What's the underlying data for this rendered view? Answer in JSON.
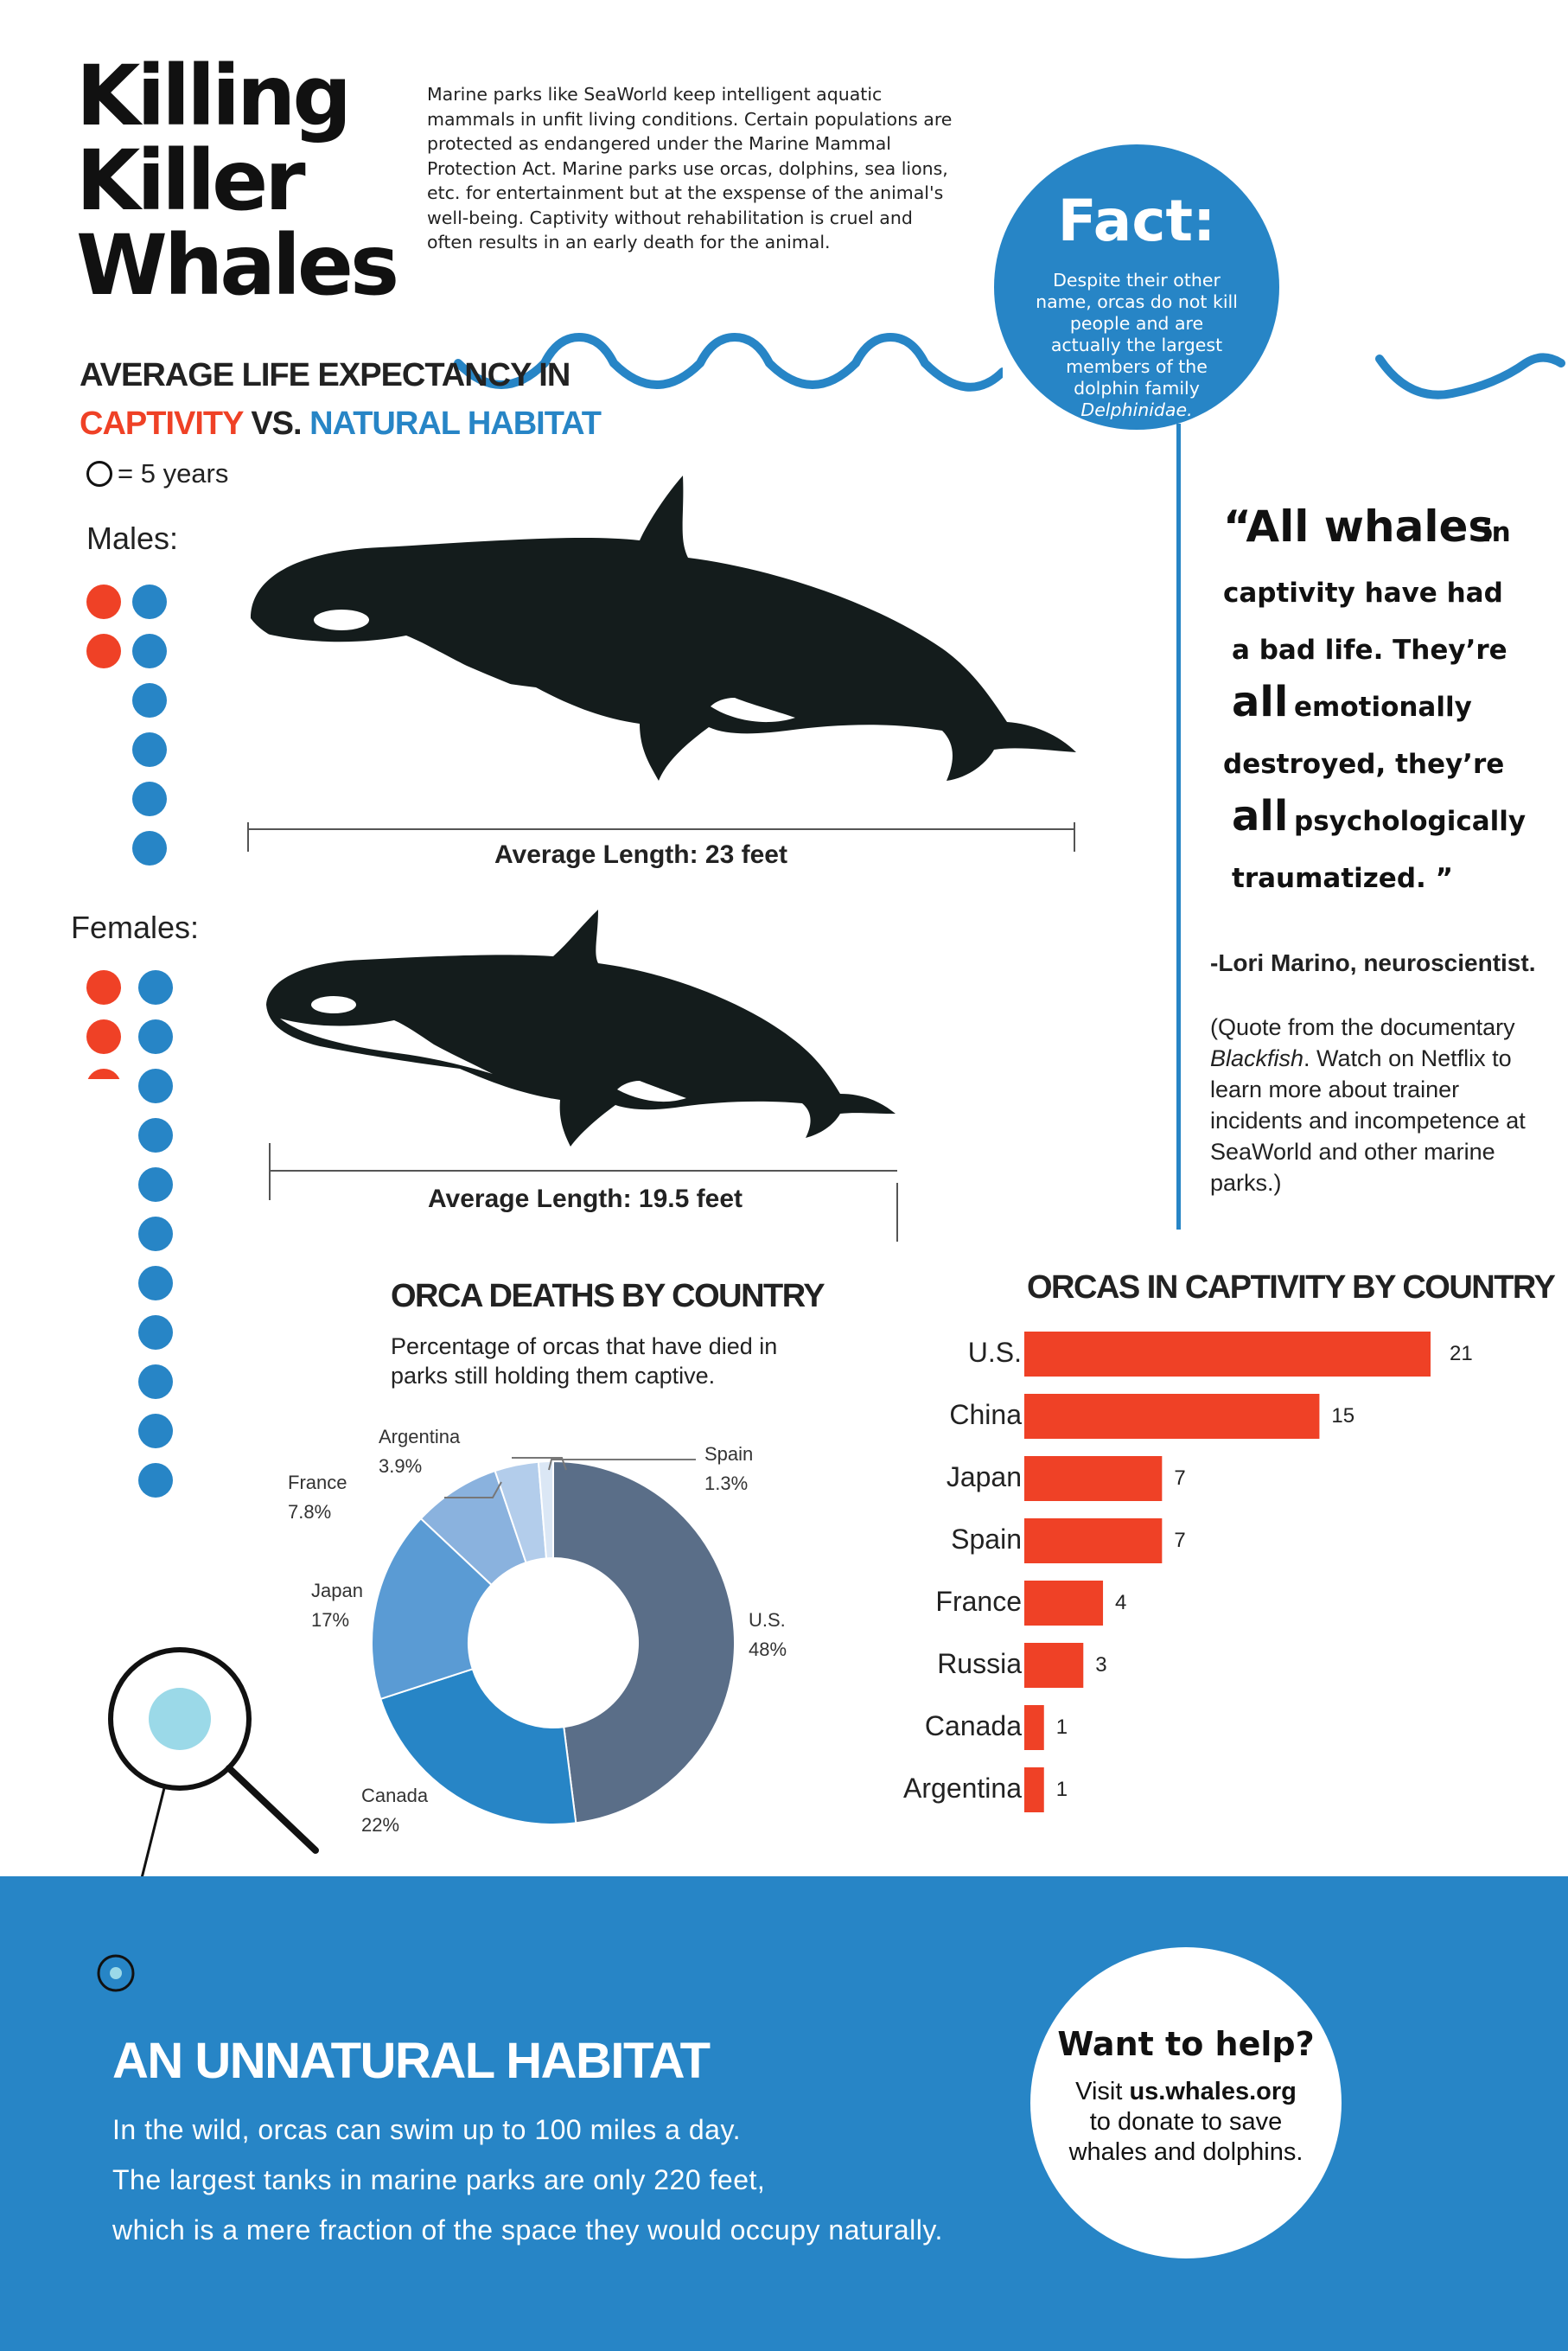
{
  "title": [
    "Killing",
    "Killer",
    "Whales"
  ],
  "intro": "Marine parks like SeaWorld keep intelligent aquatic mammals in unfit living conditions. Certain populations are protected as endangered under the Marine Mammal Protection Act. Marine parks use orcas, dolphins, sea lions, etc. for entertainment but at the exspense of the animal's well-being. Captivity without rehabilitation is cruel and often results in an early death for the animal.",
  "fact": {
    "title": "Fact:",
    "text_pre": "Despite their other name, orcas do not kill people and are actually the largest members of the dolphin family ",
    "text_italic": "Delphinidae."
  },
  "life": {
    "heading": "AVERAGE LIFE EXPECTANCY IN",
    "captivity": "CAPTIVITY",
    "vs": " VS. ",
    "natural": "NATURAL HABITAT",
    "legend": "= 5 years",
    "males_label": "Males:",
    "females_label": "Females:",
    "males_length": "Average Length: 23 feet",
    "females_length": "Average Length: 19.5 feet"
  },
  "life_chart_data": {
    "type": "pictograph",
    "unit_years": 5,
    "males": {
      "captivity_icons": 2,
      "natural_icons": 6
    },
    "females": {
      "captivity_icons": 2.3,
      "natural_icons": 11
    }
  },
  "quote": {
    "lines": [
      "“All whales",
      " in",
      "captivity have had",
      "a bad life. They’re",
      "all",
      " emotionally",
      "destroyed, they’re",
      "all",
      " psychologically",
      "traumatized. ”"
    ],
    "author": "-Lori Marino, neuroscientist.",
    "note_pre": "(Quote from the documentary ",
    "note_italic": "Blackfish",
    "note_post": ". Watch on Netflix to learn more about trainer incidents and incompetence at SeaWorld and other marine parks.)"
  },
  "deaths": {
    "title": "ORCA DEATHS BY COUNTRY",
    "subtitle": "Percentage of orcas that have died in parks still holding them captive."
  },
  "captivity": {
    "title": "ORCAS IN CAPTIVITY BY COUNTRY"
  },
  "chart_data": [
    {
      "type": "pie",
      "title": "ORCA DEATHS BY COUNTRY",
      "subtitle": "Percentage of orcas that have died in parks still holding them captive.",
      "slices": [
        {
          "label": "U.S.",
          "value": 48,
          "text": "48%",
          "color": "#5a6e88"
        },
        {
          "label": "Canada",
          "value": 22,
          "text": "22%",
          "color": "#2785c6"
        },
        {
          "label": "Japan",
          "value": 17,
          "text": "17%",
          "color": "#5a9bd4"
        },
        {
          "label": "France",
          "value": 7.8,
          "text": "7.8%",
          "color": "#8ab2de"
        },
        {
          "label": "Argentina",
          "value": 3.9,
          "text": "3.9%",
          "color": "#b3cdeb"
        },
        {
          "label": "Spain",
          "value": 1.3,
          "text": "1.3%",
          "color": "#dbe7f5"
        }
      ]
    },
    {
      "type": "bar",
      "orientation": "horizontal",
      "title": "ORCAS IN CAPTIVITY BY COUNTRY",
      "categories": [
        "U.S.",
        "China",
        "Japan",
        "Spain",
        "France",
        "Russia",
        "Canada",
        "Argentina"
      ],
      "values": [
        21,
        15,
        7,
        7,
        4,
        3,
        1,
        1
      ],
      "color": "#ef4126",
      "xlim": [
        0,
        21
      ]
    }
  ],
  "unnatural": {
    "title": "AN UNNATURAL HABITAT",
    "lines": [
      "In the wild, orcas can swim up to 100 miles a day.",
      "The largest tanks in marine parks are only 220 feet,",
      "which is a mere fraction of the space they would occupy naturally."
    ]
  },
  "help": {
    "title": "Want to help?",
    "visit": "Visit ",
    "url": "us.whales.org",
    "rest": "to donate to save whales and dolphins."
  },
  "colors": {
    "red": "#ef4126",
    "blue": "#2785c6",
    "slate": "#5a6e88"
  }
}
